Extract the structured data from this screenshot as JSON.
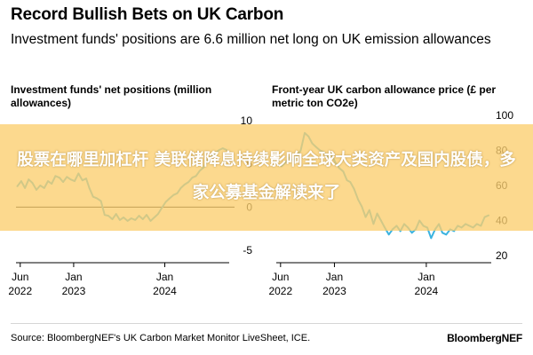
{
  "header": {
    "title": "Record Bullish Bets on UK Carbon",
    "subtitle": "Investment funds' positions are 6.6 million net long on UK emission allowances"
  },
  "overlay": {
    "text": "股票在哪里加杠杆 美联储降息持续影响全球大类资产及国内股债，多家公募基金解读来了"
  },
  "footer": {
    "source": "Source: BloombergNEF's UK Carbon Market Monitor LiveSheet, ICE.",
    "brand": "BloombergNEF"
  },
  "colors": {
    "line": "#3bb3e0",
    "zero_line": "#000000",
    "grid": "#e6e6e6",
    "banner": "#fbce6e"
  },
  "chart_data": [
    {
      "type": "line",
      "title": "Investment funds' net positions (million allowances)",
      "xlabel": "",
      "ylabel": "",
      "ylim": [
        -5,
        10
      ],
      "yticks": [
        10,
        5,
        0,
        -5
      ],
      "xlim": [
        "2022-05-15",
        "2024-09-15"
      ],
      "xticks": [
        {
          "date": "2022-06-01",
          "label": [
            "Jun",
            "2022"
          ]
        },
        {
          "date": "2023-01-01",
          "label": [
            "Jan",
            "2023"
          ]
        },
        {
          "date": "2024-01-01",
          "label": [
            "Jan",
            "2024"
          ]
        }
      ],
      "zero_line": true,
      "grid": false,
      "series": [
        {
          "x": [
            "2022-05-20",
            "2022-06-05",
            "2022-06-20",
            "2022-07-05",
            "2022-07-20",
            "2022-08-05",
            "2022-08-20",
            "2022-09-05",
            "2022-09-20",
            "2022-10-05",
            "2022-10-20",
            "2022-11-05",
            "2022-11-20",
            "2022-12-05",
            "2022-12-20",
            "2023-01-05",
            "2023-01-20",
            "2023-02-05",
            "2023-02-20",
            "2023-03-05",
            "2023-03-20",
            "2023-04-05",
            "2023-04-20",
            "2023-05-05",
            "2023-05-20",
            "2023-06-05",
            "2023-06-20",
            "2023-07-05",
            "2023-07-20",
            "2023-08-05",
            "2023-08-20",
            "2023-09-05",
            "2023-09-20",
            "2023-10-05",
            "2023-10-20",
            "2023-11-05",
            "2023-11-20",
            "2023-12-05",
            "2023-12-20",
            "2024-01-05",
            "2024-01-20",
            "2024-02-05",
            "2024-02-20",
            "2024-03-05",
            "2024-03-20",
            "2024-04-05",
            "2024-04-20",
            "2024-05-05",
            "2024-05-20",
            "2024-06-05",
            "2024-06-20",
            "2024-07-05",
            "2024-07-20",
            "2024-08-05",
            "2024-08-20",
            "2024-09-05"
          ],
          "values": [
            2.4,
            3.0,
            2.2,
            3.2,
            2.8,
            2.0,
            2.5,
            2.2,
            3.0,
            2.7,
            3.6,
            3.4,
            2.9,
            3.5,
            3.2,
            3.0,
            3.9,
            3.1,
            3.3,
            2.2,
            1.2,
            1.0,
            0.7,
            -0.9,
            -1.0,
            -1.4,
            -0.8,
            -1.5,
            -1.2,
            -1.6,
            -1.3,
            -1.5,
            -1.0,
            -1.4,
            -0.9,
            -1.6,
            -1.2,
            -0.8,
            -0.1,
            0.6,
            1.0,
            1.4,
            1.6,
            2.2,
            2.6,
            2.9,
            3.4,
            3.6,
            4.2,
            4.6,
            5.4,
            5.8,
            6.2,
            6.6,
            6.8,
            6.6
          ]
        }
      ]
    },
    {
      "type": "line",
      "title": "Front-year UK carbon allowance price (£ per metric ton CO2e)",
      "xlabel": "",
      "ylabel": "",
      "ylim": [
        20,
        100
      ],
      "yticks": [
        100,
        80,
        60,
        40,
        20
      ],
      "xlim": [
        "2022-05-15",
        "2024-09-15"
      ],
      "xticks": [
        {
          "date": "2022-06-01",
          "label": [
            "Jun",
            "2022"
          ]
        },
        {
          "date": "2023-01-01",
          "label": [
            "Jan",
            "2023"
          ]
        },
        {
          "date": "2024-01-01",
          "label": [
            "Jan",
            "2024"
          ]
        }
      ],
      "grid": false,
      "series": [
        {
          "x": [
            "2022-05-20",
            "2022-06-05",
            "2022-06-20",
            "2022-07-05",
            "2022-07-20",
            "2022-08-05",
            "2022-08-20",
            "2022-09-05",
            "2022-09-20",
            "2022-10-05",
            "2022-10-20",
            "2022-11-05",
            "2022-11-20",
            "2022-12-05",
            "2022-12-20",
            "2023-01-05",
            "2023-01-20",
            "2023-02-05",
            "2023-02-20",
            "2023-03-05",
            "2023-03-20",
            "2023-04-05",
            "2023-04-20",
            "2023-05-05",
            "2023-05-20",
            "2023-06-05",
            "2023-06-20",
            "2023-07-05",
            "2023-07-20",
            "2023-08-05",
            "2023-08-20",
            "2023-09-05",
            "2023-09-20",
            "2023-10-05",
            "2023-10-20",
            "2023-11-05",
            "2023-11-20",
            "2023-12-05",
            "2023-12-20",
            "2024-01-05",
            "2024-01-20",
            "2024-02-05",
            "2024-02-20",
            "2024-03-05",
            "2024-03-20",
            "2024-04-05",
            "2024-04-20",
            "2024-05-05",
            "2024-05-20",
            "2024-06-05",
            "2024-06-20",
            "2024-07-05",
            "2024-07-20",
            "2024-08-05",
            "2024-08-20",
            "2024-09-05"
          ],
          "values": [
            72,
            71,
            73,
            76,
            74,
            77,
            80,
            90,
            88,
            84,
            82,
            80,
            79,
            76,
            78,
            73,
            70,
            68,
            63,
            62,
            58,
            52,
            48,
            42,
            46,
            38,
            44,
            40,
            36,
            32,
            35,
            37,
            34,
            38,
            36,
            33,
            35,
            40,
            37,
            36,
            30,
            35,
            38,
            33,
            32,
            35,
            34,
            37,
            36,
            38,
            37,
            36,
            38,
            37,
            42,
            43
          ]
        }
      ]
    }
  ]
}
